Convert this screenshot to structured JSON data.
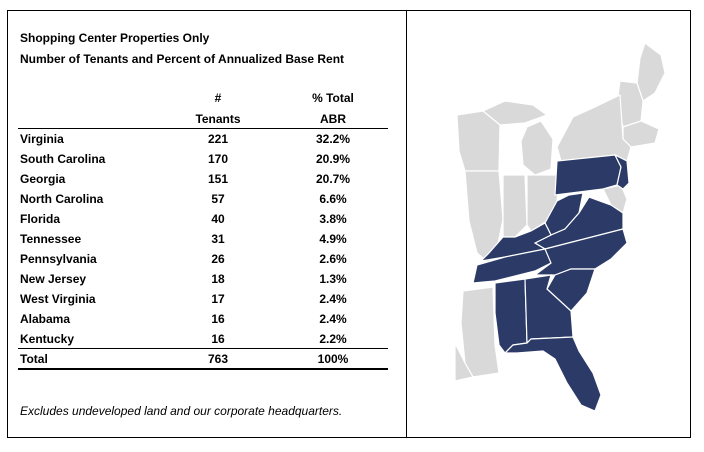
{
  "title_line1": "Shopping Center Properties Only",
  "title_line2": "Number of Tenants and Percent of Annualized Base Rent",
  "columns": {
    "tenants_top": "#",
    "tenants_bottom": "Tenants",
    "abr_top": "% Total",
    "abr_bottom": "ABR"
  },
  "rows": [
    {
      "state": "Virginia",
      "tenants": "221",
      "abr": "32.2%"
    },
    {
      "state": "South Carolina",
      "tenants": "170",
      "abr": "20.9%"
    },
    {
      "state": "Georgia",
      "tenants": "151",
      "abr": "20.7%"
    },
    {
      "state": "North Carolina",
      "tenants": "57",
      "abr": "6.6%"
    },
    {
      "state": "Florida",
      "tenants": "40",
      "abr": "3.8%"
    },
    {
      "state": "Tennessee",
      "tenants": "31",
      "abr": "4.9%"
    },
    {
      "state": "Pennsylvania",
      "tenants": "26",
      "abr": "2.6%"
    },
    {
      "state": "New Jersey",
      "tenants": "18",
      "abr": "1.3%"
    },
    {
      "state": "West Virginia",
      "tenants": "17",
      "abr": "2.4%"
    },
    {
      "state": "Alabama",
      "tenants": "16",
      "abr": "2.4%"
    },
    {
      "state": "Kentucky",
      "tenants": "16",
      "abr": "2.2%"
    }
  ],
  "total": {
    "label": "Total",
    "tenants": "763",
    "abr": "100%"
  },
  "footnote": "Excludes undeveloped land and our corporate headquarters.",
  "map": {
    "highlight_color": "#2b3a67",
    "other_color": "#d9d9d9",
    "border_color": "#ffffff",
    "highlighted_states": [
      "Virginia",
      "South Carolina",
      "Georgia",
      "North Carolina",
      "Florida",
      "Tennessee",
      "Pennsylvania",
      "New Jersey",
      "West Virginia",
      "Alabama",
      "Kentucky"
    ]
  }
}
